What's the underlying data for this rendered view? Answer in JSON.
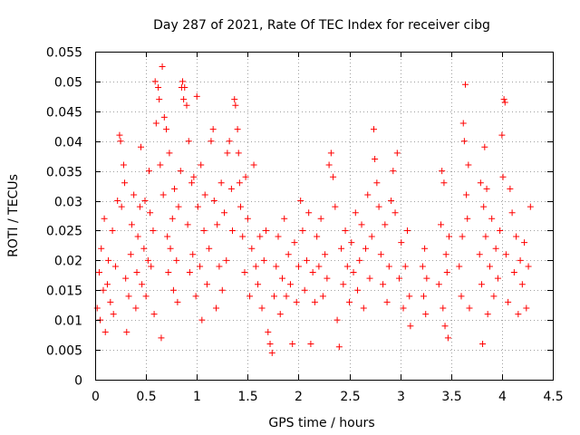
{
  "chart_data": {
    "type": "scatter",
    "title": "Day 287 of 2021, Rate Of TEC Index for receiver cibg",
    "xlabel": "GPS time / hours",
    "ylabel": "ROTI / TECUs",
    "xlim": [
      0,
      4.5
    ],
    "ylim": [
      0,
      0.055
    ],
    "xticks": [
      "0",
      "0.5",
      "1",
      "1.5",
      "2",
      "2.5",
      "3",
      "3.5",
      "4",
      "4.5"
    ],
    "yticks": [
      "0",
      "0.005",
      "0.01",
      "0.015",
      "0.02",
      "0.025",
      "0.03",
      "0.035",
      "0.04",
      "0.045",
      "0.05",
      "0.055"
    ],
    "grid": true,
    "marker": "plus",
    "color": "#ff0000",
    "series": [
      {
        "points": [
          [
            0.02,
            0.012
          ],
          [
            0.04,
            0.018
          ],
          [
            0.05,
            0.01
          ],
          [
            0.06,
            0.022
          ],
          [
            0.08,
            0.015
          ],
          [
            0.09,
            0.027
          ],
          [
            0.1,
            0.008
          ],
          [
            0.12,
            0.016
          ],
          [
            0.13,
            0.02
          ],
          [
            0.15,
            0.013
          ],
          [
            0.17,
            0.025
          ],
          [
            0.18,
            0.011
          ],
          [
            0.2,
            0.019
          ],
          [
            0.22,
            0.03
          ],
          [
            0.24,
            0.041
          ],
          [
            0.25,
            0.04
          ],
          [
            0.26,
            0.029
          ],
          [
            0.28,
            0.036
          ],
          [
            0.29,
            0.033
          ],
          [
            0.3,
            0.017
          ],
          [
            0.31,
            0.008
          ],
          [
            0.33,
            0.014
          ],
          [
            0.35,
            0.021
          ],
          [
            0.36,
            0.026
          ],
          [
            0.38,
            0.031
          ],
          [
            0.4,
            0.012
          ],
          [
            0.41,
            0.018
          ],
          [
            0.42,
            0.024
          ],
          [
            0.44,
            0.029
          ],
          [
            0.45,
            0.039
          ],
          [
            0.46,
            0.016
          ],
          [
            0.48,
            0.022
          ],
          [
            0.49,
            0.03
          ],
          [
            0.5,
            0.014
          ],
          [
            0.52,
            0.02
          ],
          [
            0.53,
            0.035
          ],
          [
            0.54,
            0.028
          ],
          [
            0.55,
            0.019
          ],
          [
            0.57,
            0.025
          ],
          [
            0.58,
            0.011
          ],
          [
            0.59,
            0.05
          ],
          [
            0.6,
            0.043
          ],
          [
            0.62,
            0.049
          ],
          [
            0.63,
            0.047
          ],
          [
            0.64,
            0.036
          ],
          [
            0.65,
            0.007
          ],
          [
            0.66,
            0.0525
          ],
          [
            0.67,
            0.031
          ],
          [
            0.68,
            0.044
          ],
          [
            0.7,
            0.042
          ],
          [
            0.71,
            0.024
          ],
          [
            0.72,
            0.018
          ],
          [
            0.73,
            0.038
          ],
          [
            0.74,
            0.022
          ],
          [
            0.76,
            0.027
          ],
          [
            0.77,
            0.015
          ],
          [
            0.78,
            0.032
          ],
          [
            0.8,
            0.02
          ],
          [
            0.81,
            0.013
          ],
          [
            0.82,
            0.029
          ],
          [
            0.84,
            0.035
          ],
          [
            0.85,
            0.049
          ],
          [
            0.86,
            0.05
          ],
          [
            0.87,
            0.047
          ],
          [
            0.88,
            0.049
          ],
          [
            0.9,
            0.046
          ],
          [
            0.91,
            0.026
          ],
          [
            0.92,
            0.04
          ],
          [
            0.93,
            0.018
          ],
          [
            0.95,
            0.033
          ],
          [
            0.96,
            0.021
          ],
          [
            0.97,
            0.034
          ],
          [
            0.99,
            0.014
          ],
          [
            1.0,
            0.0475
          ],
          [
            1.01,
            0.029
          ],
          [
            1.03,
            0.019
          ],
          [
            1.04,
            0.036
          ],
          [
            1.05,
            0.01
          ],
          [
            1.07,
            0.025
          ],
          [
            1.08,
            0.031
          ],
          [
            1.1,
            0.016
          ],
          [
            1.12,
            0.022
          ],
          [
            1.14,
            0.04
          ],
          [
            1.16,
            0.042
          ],
          [
            1.17,
            0.03
          ],
          [
            1.19,
            0.012
          ],
          [
            1.2,
            0.026
          ],
          [
            1.22,
            0.019
          ],
          [
            1.24,
            0.033
          ],
          [
            1.25,
            0.015
          ],
          [
            1.27,
            0.028
          ],
          [
            1.29,
            0.02
          ],
          [
            1.3,
            0.038
          ],
          [
            1.32,
            0.04
          ],
          [
            1.34,
            0.032
          ],
          [
            1.35,
            0.025
          ],
          [
            1.37,
            0.047
          ],
          [
            1.38,
            0.046
          ],
          [
            1.4,
            0.042
          ],
          [
            1.41,
            0.038
          ],
          [
            1.42,
            0.033
          ],
          [
            1.43,
            0.029
          ],
          [
            1.45,
            0.024
          ],
          [
            1.47,
            0.018
          ],
          [
            1.48,
            0.034
          ],
          [
            1.5,
            0.027
          ],
          [
            1.52,
            0.014
          ],
          [
            1.54,
            0.022
          ],
          [
            1.56,
            0.036
          ],
          [
            1.58,
            0.019
          ],
          [
            1.6,
            0.016
          ],
          [
            1.62,
            0.024
          ],
          [
            1.64,
            0.012
          ],
          [
            1.66,
            0.02
          ],
          [
            1.68,
            0.025
          ],
          [
            1.7,
            0.008
          ],
          [
            1.72,
            0.006
          ],
          [
            1.74,
            0.0045
          ],
          [
            1.76,
            0.014
          ],
          [
            1.78,
            0.019
          ],
          [
            1.8,
            0.024
          ],
          [
            1.82,
            0.011
          ],
          [
            1.84,
            0.017
          ],
          [
            1.86,
            0.027
          ],
          [
            1.88,
            0.014
          ],
          [
            1.9,
            0.021
          ],
          [
            1.92,
            0.016
          ],
          [
            1.94,
            0.006
          ],
          [
            1.96,
            0.023
          ],
          [
            1.98,
            0.013
          ],
          [
            2.0,
            0.019
          ],
          [
            2.02,
            0.03
          ],
          [
            2.04,
            0.025
          ],
          [
            2.06,
            0.015
          ],
          [
            2.08,
            0.02
          ],
          [
            2.1,
            0.028
          ],
          [
            2.12,
            0.006
          ],
          [
            2.14,
            0.018
          ],
          [
            2.16,
            0.013
          ],
          [
            2.18,
            0.024
          ],
          [
            2.2,
            0.019
          ],
          [
            2.22,
            0.027
          ],
          [
            2.24,
            0.014
          ],
          [
            2.26,
            0.021
          ],
          [
            2.28,
            0.017
          ],
          [
            2.3,
            0.036
          ],
          [
            2.32,
            0.038
          ],
          [
            2.34,
            0.034
          ],
          [
            2.36,
            0.029
          ],
          [
            2.38,
            0.01
          ],
          [
            2.4,
            0.0055
          ],
          [
            2.42,
            0.022
          ],
          [
            2.44,
            0.016
          ],
          [
            2.46,
            0.025
          ],
          [
            2.48,
            0.019
          ],
          [
            2.5,
            0.013
          ],
          [
            2.52,
            0.023
          ],
          [
            2.54,
            0.018
          ],
          [
            2.56,
            0.028
          ],
          [
            2.58,
            0.015
          ],
          [
            2.6,
            0.02
          ],
          [
            2.62,
            0.026
          ],
          [
            2.64,
            0.012
          ],
          [
            2.66,
            0.022
          ],
          [
            2.68,
            0.031
          ],
          [
            2.7,
            0.017
          ],
          [
            2.72,
            0.024
          ],
          [
            2.74,
            0.042
          ],
          [
            2.75,
            0.037
          ],
          [
            2.77,
            0.033
          ],
          [
            2.79,
            0.029
          ],
          [
            2.81,
            0.021
          ],
          [
            2.83,
            0.016
          ],
          [
            2.85,
            0.026
          ],
          [
            2.87,
            0.013
          ],
          [
            2.89,
            0.019
          ],
          [
            2.91,
            0.03
          ],
          [
            2.93,
            0.035
          ],
          [
            2.95,
            0.028
          ],
          [
            2.97,
            0.038
          ],
          [
            2.99,
            0.017
          ],
          [
            3.01,
            0.023
          ],
          [
            3.03,
            0.012
          ],
          [
            3.05,
            0.019
          ],
          [
            3.07,
            0.025
          ],
          [
            3.09,
            0.014
          ],
          [
            3.1,
            0.009
          ],
          [
            3.22,
            0.019
          ],
          [
            3.23,
            0.014
          ],
          [
            3.24,
            0.022
          ],
          [
            3.25,
            0.011
          ],
          [
            3.26,
            0.017
          ],
          [
            3.38,
            0.016
          ],
          [
            3.4,
            0.026
          ],
          [
            3.41,
            0.035
          ],
          [
            3.42,
            0.012
          ],
          [
            3.43,
            0.033
          ],
          [
            3.44,
            0.009
          ],
          [
            3.45,
            0.021
          ],
          [
            3.46,
            0.018
          ],
          [
            3.47,
            0.007
          ],
          [
            3.48,
            0.024
          ],
          [
            3.58,
            0.019
          ],
          [
            3.6,
            0.014
          ],
          [
            3.61,
            0.024
          ],
          [
            3.62,
            0.043
          ],
          [
            3.63,
            0.04
          ],
          [
            3.64,
            0.0495
          ],
          [
            3.65,
            0.031
          ],
          [
            3.66,
            0.027
          ],
          [
            3.67,
            0.036
          ],
          [
            3.68,
            0.012
          ],
          [
            3.78,
            0.021
          ],
          [
            3.79,
            0.033
          ],
          [
            3.8,
            0.016
          ],
          [
            3.81,
            0.006
          ],
          [
            3.82,
            0.029
          ],
          [
            3.83,
            0.039
          ],
          [
            3.84,
            0.024
          ],
          [
            3.85,
            0.032
          ],
          [
            3.86,
            0.011
          ],
          [
            3.88,
            0.019
          ],
          [
            3.9,
            0.027
          ],
          [
            3.92,
            0.014
          ],
          [
            3.94,
            0.022
          ],
          [
            3.96,
            0.017
          ],
          [
            3.98,
            0.025
          ],
          [
            4.0,
            0.041
          ],
          [
            4.01,
            0.034
          ],
          [
            4.02,
            0.047
          ],
          [
            4.03,
            0.0465
          ],
          [
            4.04,
            0.021
          ],
          [
            4.06,
            0.013
          ],
          [
            4.08,
            0.032
          ],
          [
            4.1,
            0.028
          ],
          [
            4.12,
            0.018
          ],
          [
            4.14,
            0.024
          ],
          [
            4.16,
            0.011
          ],
          [
            4.18,
            0.02
          ],
          [
            4.2,
            0.016
          ],
          [
            4.22,
            0.023
          ],
          [
            4.24,
            0.012
          ],
          [
            4.26,
            0.019
          ],
          [
            4.28,
            0.029
          ]
        ]
      }
    ]
  }
}
